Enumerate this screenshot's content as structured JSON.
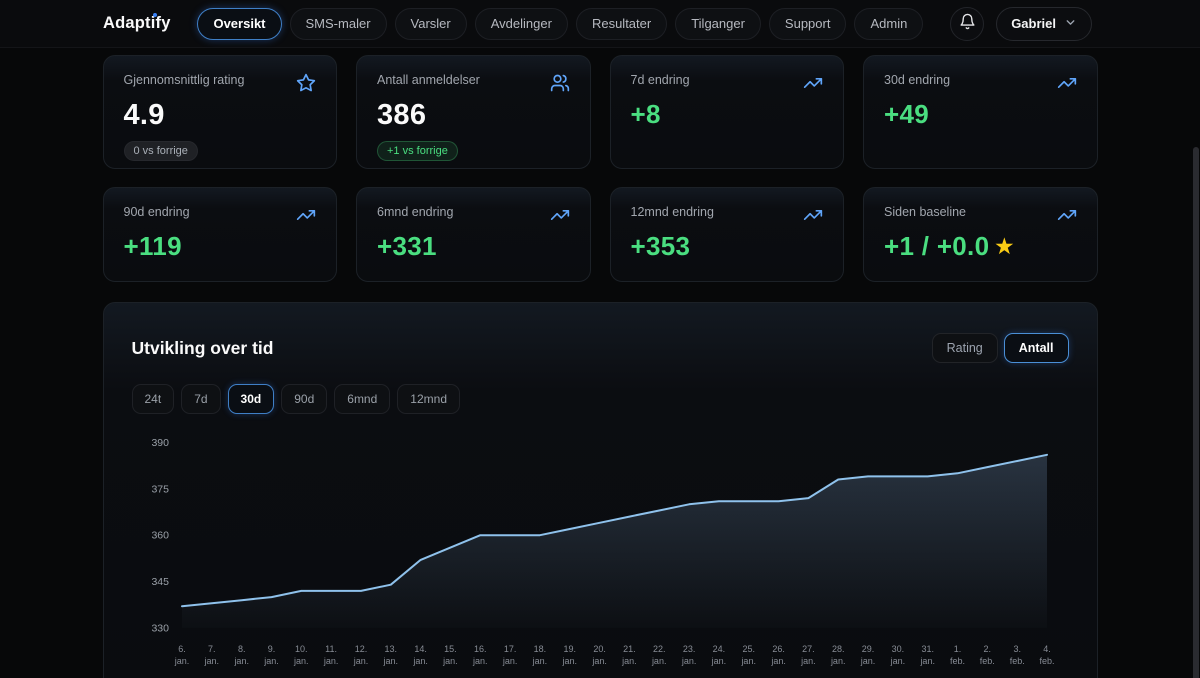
{
  "nav": {
    "logo": "Adaptify",
    "items": [
      {
        "label": "Oversikt",
        "active": true
      },
      {
        "label": "SMS-maler",
        "active": false
      },
      {
        "label": "Varsler",
        "active": false
      },
      {
        "label": "Avdelinger",
        "active": false
      },
      {
        "label": "Resultater",
        "active": false
      },
      {
        "label": "Tilganger",
        "active": false
      },
      {
        "label": "Support",
        "active": false
      },
      {
        "label": "Admin",
        "active": false
      }
    ],
    "bell_icon": "bell",
    "user": {
      "name": "Gabriel",
      "chevron_icon": "chevron-down"
    }
  },
  "stats": [
    {
      "label": "Gjennomsnittlig rating",
      "value": "4.9",
      "badge": "0 vs forrige",
      "badge_type": "neutral",
      "icon": "star"
    },
    {
      "label": "Antall anmeldelser",
      "value": "386",
      "badge": "+1 vs forrige",
      "badge_type": "positive",
      "icon": "users"
    },
    {
      "label": "7d endring",
      "value": "+8",
      "icon": "trending-up"
    },
    {
      "label": "30d endring",
      "value": "+49",
      "icon": "trending-up"
    },
    {
      "label": "90d endring",
      "value": "+119",
      "icon": "trending-up"
    },
    {
      "label": "6mnd endring",
      "value": "+331",
      "icon": "trending-up"
    },
    {
      "label": "12mnd endring",
      "value": "+353",
      "icon": "trending-up"
    },
    {
      "label": "Siden baseline",
      "value": "+1 / +0.0",
      "star_suffix": "★",
      "icon": "trending-up"
    }
  ],
  "chart": {
    "title": "Utvikling over tid",
    "mode_buttons": [
      {
        "label": "Rating",
        "active": false
      },
      {
        "label": "Antall",
        "active": true
      }
    ],
    "range_buttons": [
      {
        "label": "24t",
        "active": false
      },
      {
        "label": "7d",
        "active": false
      },
      {
        "label": "30d",
        "active": true
      },
      {
        "label": "90d",
        "active": false
      },
      {
        "label": "6mnd",
        "active": false
      },
      {
        "label": "12mnd",
        "active": false
      }
    ]
  },
  "chart_data": {
    "type": "area",
    "title": "Utvikling over tid",
    "series_name": "Antall",
    "x_labels": [
      {
        "day": "6.",
        "month": "jan."
      },
      {
        "day": "7.",
        "month": "jan."
      },
      {
        "day": "8.",
        "month": "jan."
      },
      {
        "day": "9.",
        "month": "jan."
      },
      {
        "day": "10.",
        "month": "jan."
      },
      {
        "day": "11.",
        "month": "jan."
      },
      {
        "day": "12.",
        "month": "jan."
      },
      {
        "day": "13.",
        "month": "jan."
      },
      {
        "day": "14.",
        "month": "jan."
      },
      {
        "day": "15.",
        "month": "jan."
      },
      {
        "day": "16.",
        "month": "jan."
      },
      {
        "day": "17.",
        "month": "jan."
      },
      {
        "day": "18.",
        "month": "jan."
      },
      {
        "day": "19.",
        "month": "jan."
      },
      {
        "day": "20.",
        "month": "jan."
      },
      {
        "day": "21.",
        "month": "jan."
      },
      {
        "day": "22.",
        "month": "jan."
      },
      {
        "day": "23.",
        "month": "jan."
      },
      {
        "day": "24.",
        "month": "jan."
      },
      {
        "day": "25.",
        "month": "jan."
      },
      {
        "day": "26.",
        "month": "jan."
      },
      {
        "day": "27.",
        "month": "jan."
      },
      {
        "day": "28.",
        "month": "jan."
      },
      {
        "day": "29.",
        "month": "jan."
      },
      {
        "day": "30.",
        "month": "jan."
      },
      {
        "day": "31.",
        "month": "jan."
      },
      {
        "day": "1.",
        "month": "feb."
      },
      {
        "day": "2.",
        "month": "feb."
      },
      {
        "day": "3.",
        "month": "feb."
      },
      {
        "day": "4.",
        "month": "feb."
      }
    ],
    "values": [
      337,
      338,
      339,
      340,
      342,
      342,
      342,
      344,
      352,
      356,
      360,
      360,
      360,
      362,
      364,
      366,
      368,
      370,
      371,
      371,
      371,
      372,
      378,
      379,
      379,
      379,
      380,
      382,
      384,
      386
    ],
    "y_ticks": [
      330,
      345,
      360,
      375,
      390
    ],
    "ylim": [
      330,
      395
    ],
    "grid": false,
    "legend": "none",
    "line_color": "#8fc2ec",
    "area_top_color": "rgba(125,160,200,0.26)",
    "area_bottom_color": "rgba(125,160,200,0.02)"
  },
  "colors": {
    "accent_blue": "#3b82f6",
    "icon_blue": "#60a5fa",
    "positive_green": "#4ade80",
    "star_yellow": "#facc15",
    "card_border": "#1c2127",
    "page_bg": "#070809"
  }
}
